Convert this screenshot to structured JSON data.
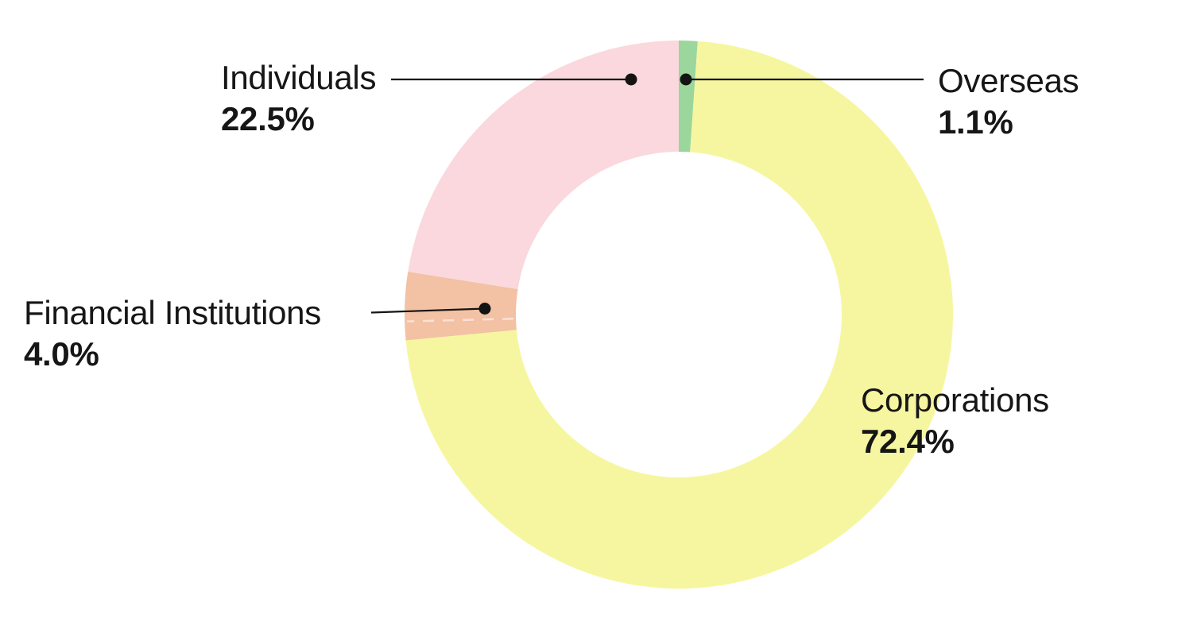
{
  "chart_data": {
    "type": "pie",
    "variant": "donut",
    "title": "",
    "start_angle_deg": 0,
    "clockwise": true,
    "segments": [
      {
        "id": "overseas",
        "label": "Overseas",
        "value": 1.1,
        "color": "#9bd69c"
      },
      {
        "id": "corporations",
        "label": "Corporations",
        "value": 72.4,
        "color": "#f6f6a0"
      },
      {
        "id": "financial_institutions",
        "label": "Financial Institutions",
        "value": 4.0,
        "color": "#f3c1a3"
      },
      {
        "id": "individuals",
        "label": "Individuals",
        "value": 22.5,
        "color": "#fad8de"
      }
    ],
    "sub_divider_pct": 74.6,
    "divider_style": {
      "color": "#ffffff",
      "opacity": 0.55
    },
    "leader_color": "#141414"
  },
  "labels": {
    "individuals": {
      "name": "Individuals",
      "value": "22.5%"
    },
    "overseas": {
      "name": "Overseas",
      "value": "1.1%"
    },
    "financial": {
      "name": "Financial Institutions",
      "value": "4.0%"
    },
    "corporations": {
      "name": "Corporations",
      "value": "72.4%"
    }
  }
}
